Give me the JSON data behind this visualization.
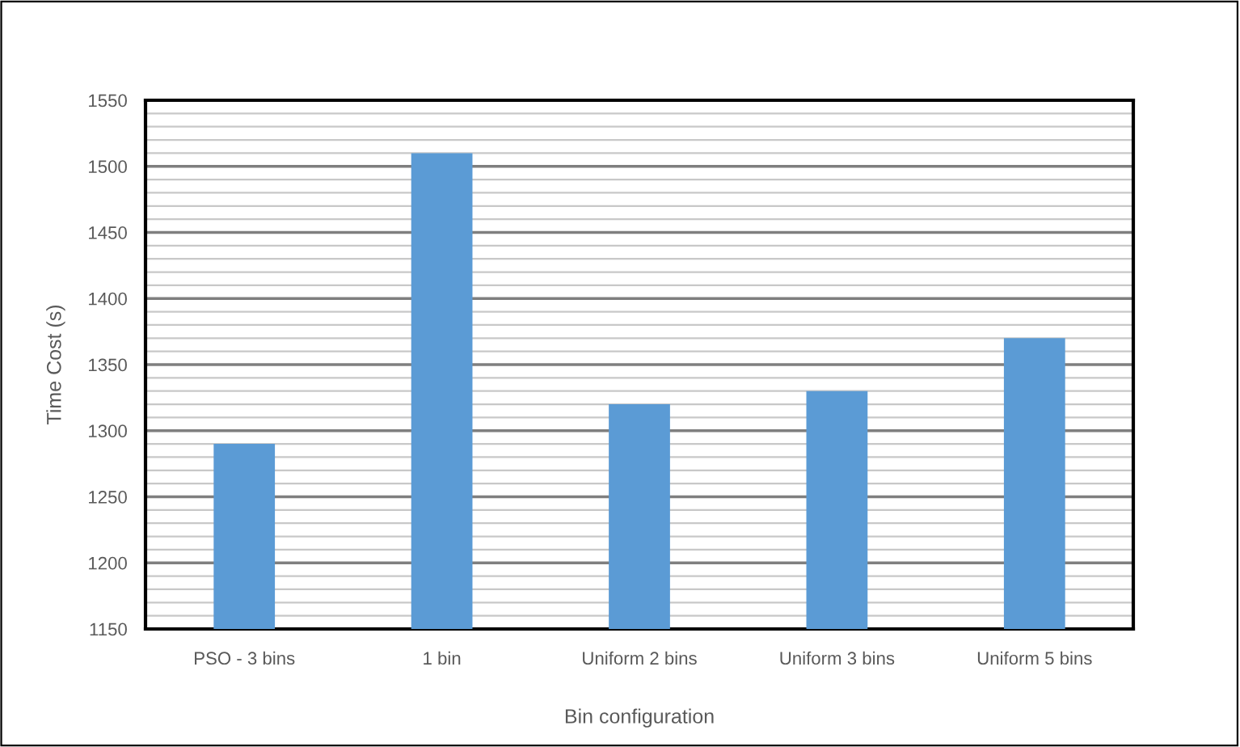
{
  "chart_data": {
    "type": "bar",
    "xlabel": "Bin configuration",
    "ylabel": "Time Cost (s)",
    "categories": [
      "PSO - 3 bins",
      "1 bin",
      "Uniform 2 bins",
      "Uniform 3 bins",
      "Uniform 5 bins"
    ],
    "values": [
      1290,
      1510,
      1320,
      1330,
      1370
    ],
    "color": "#5b9bd5",
    "ylim": [
      1150,
      1550
    ],
    "yticks": [
      1150,
      1200,
      1250,
      1300,
      1350,
      1400,
      1450,
      1500,
      1550
    ],
    "grid": "y"
  }
}
